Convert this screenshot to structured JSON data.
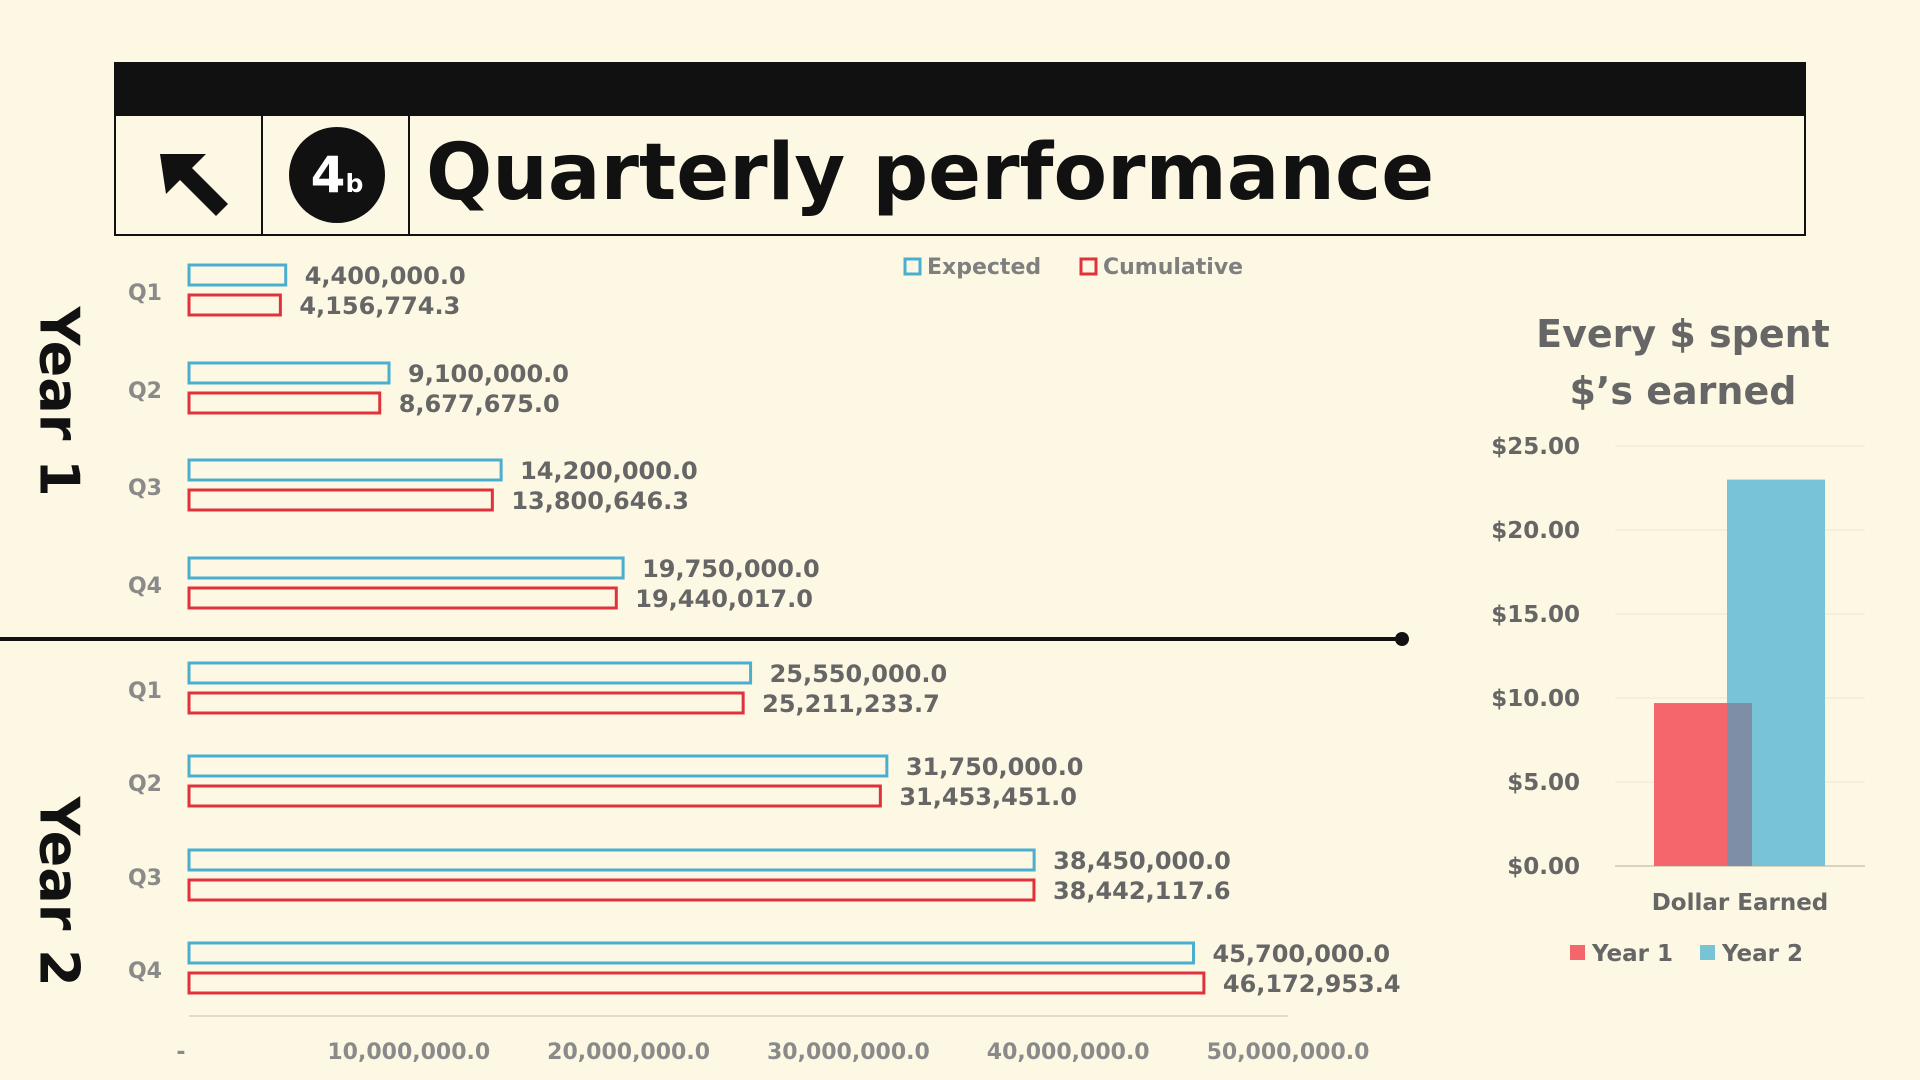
{
  "header": {
    "badge_number": "4",
    "badge_sub": "b",
    "title": "Quarterly performance"
  },
  "year_labels": [
    "Year 1",
    "Year 2"
  ],
  "colors": {
    "expected": "#4aaed0",
    "cumulative": "#e0323c",
    "year1": "#f4666b",
    "year2": "#79c3d6",
    "text_gray": "#666666"
  },
  "chart_data": [
    {
      "type": "bar",
      "orientation": "horizontal",
      "title": "",
      "groups": [
        {
          "label": "Year 1",
          "categories": [
            "Q1",
            "Q2",
            "Q3",
            "Q4"
          ]
        },
        {
          "label": "Year 2",
          "categories": [
            "Q1",
            "Q2",
            "Q3",
            "Q4"
          ]
        }
      ],
      "categories": [
        "Q1",
        "Q2",
        "Q3",
        "Q4",
        "Q1",
        "Q2",
        "Q3",
        "Q4"
      ],
      "series": [
        {
          "name": "Expected",
          "values": [
            4400000.0,
            9100000.0,
            14200000.0,
            19750000.0,
            25550000.0,
            31750000.0,
            38450000.0,
            45700000.0
          ],
          "labels": [
            "4,400,000.0",
            "9,100,000.0",
            "14,200,000.0",
            "19,750,000.0",
            "25,550,000.0",
            "31,750,000.0",
            "38,450,000.0",
            "45,700,000.0"
          ]
        },
        {
          "name": "Cumulative",
          "values": [
            4156774.3,
            8677675.0,
            13800646.3,
            19440017.0,
            25211233.7,
            31453451.0,
            38442117.6,
            46172953.4
          ],
          "labels": [
            "4,156,774.3",
            "8,677,675.0",
            "13,800,646.3",
            "19,440,017.0",
            "25,211,233.7",
            "31,453,451.0",
            "38,442,117.6",
            "46,172,953.4"
          ]
        }
      ],
      "xlim": [
        0,
        50000000
      ],
      "x_ticks": [
        0,
        10000000,
        20000000,
        30000000,
        40000000,
        50000000
      ],
      "x_tick_labels": [
        "-",
        "10,000,000.0",
        "20,000,000.0",
        "30,000,000.0",
        "40,000,000.0",
        "50,000,000.0"
      ],
      "legend_position": "top-center",
      "grid": false
    },
    {
      "type": "bar",
      "title": "Every $ spent $’s earned",
      "title_lines": [
        "Every $ spent",
        "$’s earned"
      ],
      "categories": [
        "Dollar Earned"
      ],
      "series": [
        {
          "name": "Year 1",
          "values": [
            9.7
          ]
        },
        {
          "name": "Year 2",
          "values": [
            23.0
          ]
        }
      ],
      "ylim": [
        0,
        25
      ],
      "y_ticks": [
        0,
        5,
        10,
        15,
        20,
        25
      ],
      "y_tick_labels": [
        "$0.00",
        "$5.00",
        "$10.00",
        "$15.00",
        "$20.00",
        "$25.00"
      ],
      "legend_position": "bottom",
      "grid": true
    }
  ]
}
